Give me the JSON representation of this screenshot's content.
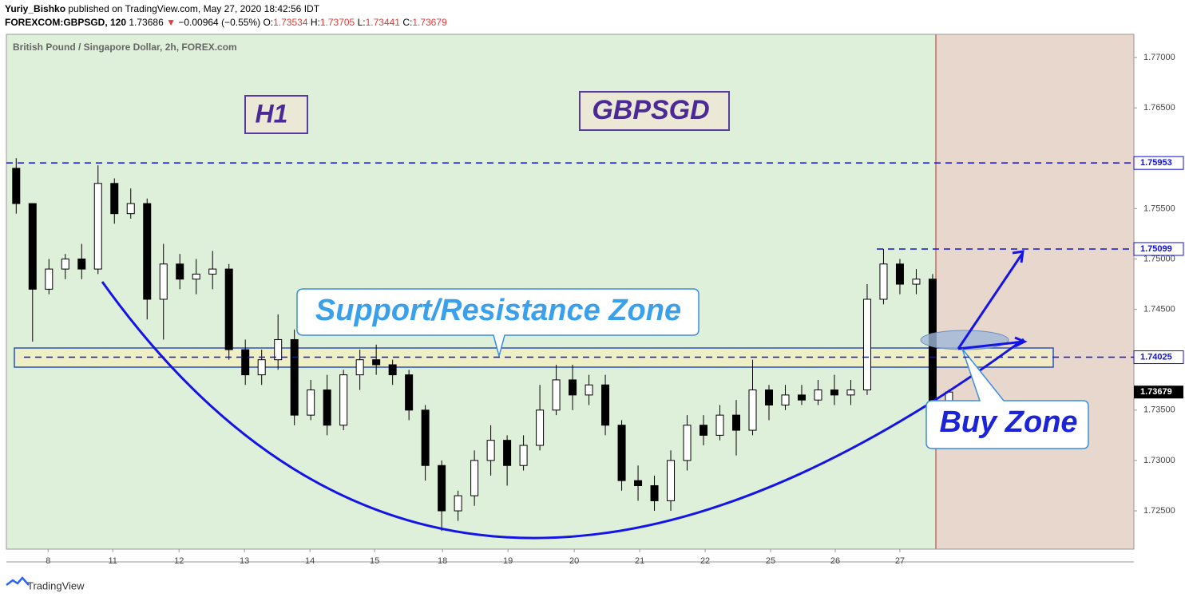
{
  "header": {
    "author": "Yuriy_Bishko",
    "published": "published on TradingView.com, May 27, 2020 18:42:56 IDT",
    "symbol": "FOREXCOM:GBPSGD, 120",
    "last": 1.73686,
    "arrow": "▼",
    "change": "−0.00964 (−0.55%)",
    "ohlc_labels": [
      "O:",
      "H:",
      "L:",
      "C:"
    ]
  },
  "chart_data": {
    "type": "candlestick",
    "title": "British Pound / Singapore Dollar, 2h, FOREX.com",
    "candles": [
      [
        1.759,
        1.76,
        1.7545,
        1.7555
      ],
      [
        1.7555,
        1.7555,
        1.7418,
        1.747
      ],
      [
        1.747,
        1.75,
        1.7465,
        1.749
      ],
      [
        1.749,
        1.7505,
        1.748,
        1.75
      ],
      [
        1.75,
        1.7515,
        1.748,
        1.749
      ],
      [
        1.749,
        1.7593,
        1.7485,
        1.7575
      ],
      [
        1.7575,
        1.758,
        1.7535,
        1.7545
      ],
      [
        1.7545,
        1.757,
        1.754,
        1.7555
      ],
      [
        1.7555,
        1.756,
        1.744,
        1.746
      ],
      [
        1.746,
        1.7515,
        1.742,
        1.7495
      ],
      [
        1.7495,
        1.7505,
        1.747,
        1.748
      ],
      [
        1.748,
        1.75,
        1.7465,
        1.7485
      ],
      [
        1.7485,
        1.7508,
        1.747,
        1.749
      ],
      [
        1.749,
        1.7495,
        1.74,
        1.741
      ],
      [
        1.741,
        1.742,
        1.7375,
        1.7385
      ],
      [
        1.7385,
        1.741,
        1.7375,
        1.74
      ],
      [
        1.74,
        1.7445,
        1.739,
        1.742
      ],
      [
        1.742,
        1.743,
        1.7335,
        1.7345
      ],
      [
        1.7345,
        1.738,
        1.734,
        1.737
      ],
      [
        1.737,
        1.7385,
        1.7325,
        1.7335
      ],
      [
        1.7335,
        1.739,
        1.733,
        1.7385
      ],
      [
        1.7385,
        1.741,
        1.737,
        1.74
      ],
      [
        1.74,
        1.7415,
        1.7385,
        1.7395
      ],
      [
        1.7395,
        1.74,
        1.7375,
        1.7385
      ],
      [
        1.7385,
        1.739,
        1.734,
        1.735
      ],
      [
        1.735,
        1.7355,
        1.728,
        1.7295
      ],
      [
        1.7295,
        1.73,
        1.723,
        1.725
      ],
      [
        1.725,
        1.727,
        1.724,
        1.7265
      ],
      [
        1.7265,
        1.731,
        1.7255,
        1.73
      ],
      [
        1.73,
        1.7335,
        1.7285,
        1.732
      ],
      [
        1.732,
        1.7325,
        1.7275,
        1.7295
      ],
      [
        1.7295,
        1.7325,
        1.729,
        1.7315
      ],
      [
        1.7315,
        1.7375,
        1.731,
        1.735
      ],
      [
        1.735,
        1.7395,
        1.7345,
        1.738
      ],
      [
        1.738,
        1.7395,
        1.735,
        1.7365
      ],
      [
        1.7365,
        1.7385,
        1.7355,
        1.7375
      ],
      [
        1.7375,
        1.7385,
        1.7325,
        1.7335
      ],
      [
        1.7335,
        1.734,
        1.727,
        1.728
      ],
      [
        1.728,
        1.7295,
        1.726,
        1.7275
      ],
      [
        1.7275,
        1.7285,
        1.725,
        1.726
      ],
      [
        1.726,
        1.731,
        1.725,
        1.73
      ],
      [
        1.73,
        1.7345,
        1.729,
        1.7335
      ],
      [
        1.7335,
        1.7345,
        1.7315,
        1.7325
      ],
      [
        1.7325,
        1.7355,
        1.732,
        1.7345
      ],
      [
        1.7345,
        1.736,
        1.7305,
        1.733
      ],
      [
        1.733,
        1.74,
        1.7325,
        1.737
      ],
      [
        1.737,
        1.7375,
        1.734,
        1.7355
      ],
      [
        1.7355,
        1.7375,
        1.735,
        1.7365
      ],
      [
        1.7365,
        1.7375,
        1.7355,
        1.736
      ],
      [
        1.736,
        1.738,
        1.7355,
        1.737
      ],
      [
        1.737,
        1.7385,
        1.7355,
        1.7365
      ],
      [
        1.7365,
        1.738,
        1.7355,
        1.737
      ],
      [
        1.737,
        1.7475,
        1.7365,
        1.746
      ],
      [
        1.746,
        1.751,
        1.7455,
        1.7495
      ],
      [
        1.7495,
        1.75,
        1.7465,
        1.7475
      ],
      [
        1.7475,
        1.749,
        1.7465,
        1.748
      ],
      [
        1.748,
        1.7485,
        1.7345,
        1.7355
      ],
      [
        1.73534,
        1.73705,
        1.73441,
        1.73679
      ]
    ],
    "xlim": [
      -0.6,
      68.3
    ],
    "xticks": [
      {
        "value": 1.95,
        "label": "8"
      },
      {
        "value": 5.9,
        "label": "11"
      },
      {
        "value": 9.95,
        "label": "12"
      },
      {
        "value": 13.95,
        "label": "13"
      },
      {
        "value": 17.95,
        "label": "14"
      },
      {
        "value": 21.9,
        "label": "15"
      },
      {
        "value": 26.05,
        "label": "18"
      },
      {
        "value": 30.05,
        "label": "19"
      },
      {
        "value": 34.1,
        "label": "20"
      },
      {
        "value": 38.1,
        "label": "21"
      },
      {
        "value": 42.1,
        "label": "22"
      },
      {
        "value": 46.1,
        "label": "25"
      },
      {
        "value": 50.05,
        "label": "26"
      },
      {
        "value": 54.0,
        "label": "27"
      }
    ],
    "ylim": [
      1.7212,
      1.7723
    ],
    "yticks": [
      {
        "value": 1.725,
        "label": "1.72500"
      },
      {
        "value": 1.73,
        "label": "1.73000"
      },
      {
        "value": 1.735,
        "label": "1.73500"
      },
      {
        "value": 1.745,
        "label": "1.74500"
      },
      {
        "value": 1.75,
        "label": "1.75000"
      },
      {
        "value": 1.755,
        "label": "1.75500"
      },
      {
        "value": 1.765,
        "label": "1.76500"
      },
      {
        "value": 1.77,
        "label": "1.77000"
      }
    ],
    "levels": [
      1.75953,
      1.75099,
      1.74025
    ],
    "up_color": "#ffffff",
    "down_color": "#000000"
  },
  "annotations": {
    "timeframe": "H1",
    "pair": "GBPSGD",
    "zone": "Support/Resistance Zone",
    "buy": "Buy Zone"
  },
  "footer": "TradingView"
}
